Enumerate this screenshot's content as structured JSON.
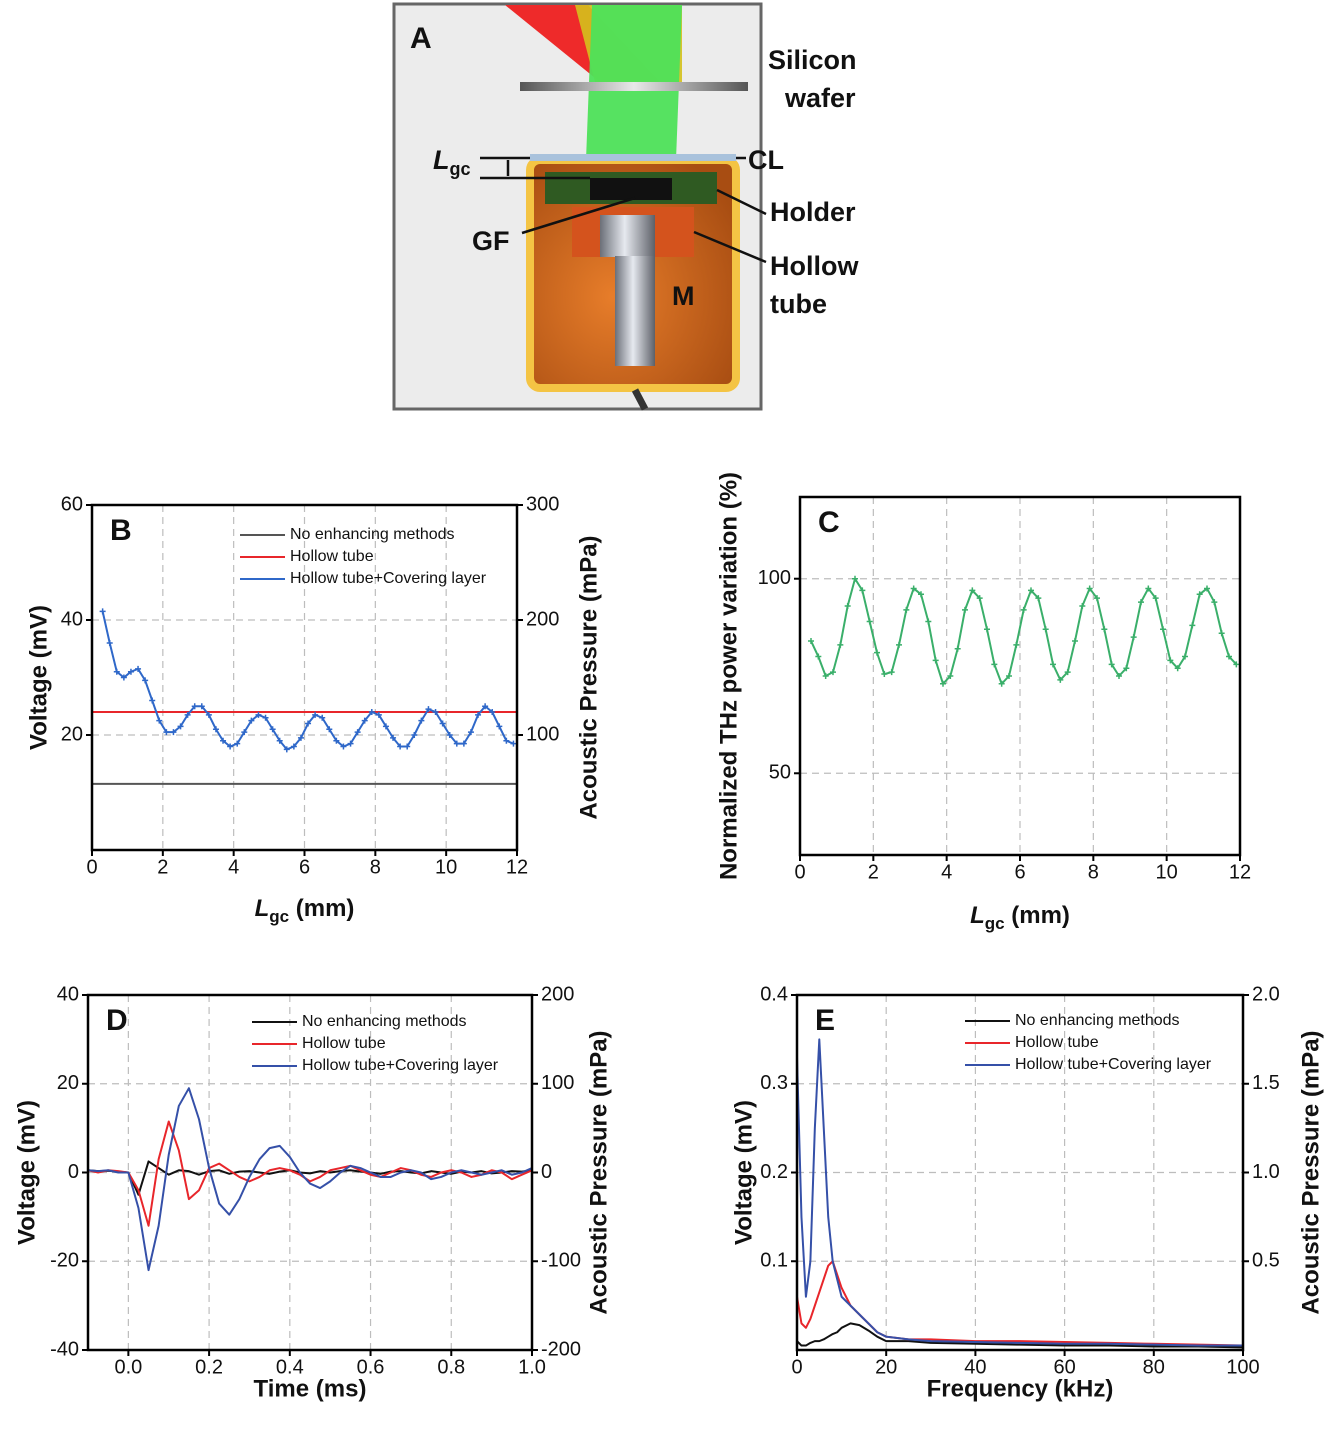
{
  "diagram": {
    "panel_label": "A",
    "labels": {
      "silicon_wafer": [
        "Silicon",
        "wafer"
      ],
      "cl": "CL",
      "holder": "Holder",
      "gf": "GF",
      "hollow_tube": [
        "Hollow",
        "tube"
      ],
      "m": "M",
      "lgc": [
        "L",
        "gc"
      ]
    }
  },
  "chart_data": [
    {
      "type": "line",
      "panel_label": "B",
      "x_label": [
        "L",
        "gc",
        " (mm)"
      ],
      "y_label": "Voltage (mV)",
      "y2_label": "Acoustic Pressure (mPa)",
      "xlim": [
        0,
        12
      ],
      "xticks": [
        0,
        2,
        4,
        6,
        8,
        10,
        12
      ],
      "ylim": [
        0,
        60
      ],
      "yticks": [
        20,
        40,
        60
      ],
      "y2lim": [
        0,
        300
      ],
      "y2ticks": [
        100,
        200,
        300
      ],
      "grid": true,
      "legend": "upper right",
      "series": [
        {
          "name": "No enhancing methods",
          "color": "#555555",
          "x": [
            0,
            12
          ],
          "values": [
            11.5,
            11.5
          ]
        },
        {
          "name": "Hollow tube",
          "color": "#e8262b",
          "x": [
            0,
            12
          ],
          "values": [
            24,
            24
          ]
        },
        {
          "name": "Hollow tube+Covering layer",
          "color": "#2f68c9",
          "marker": true,
          "x": [
            0.3,
            0.5,
            0.7,
            0.9,
            1.1,
            1.3,
            1.5,
            1.7,
            1.9,
            2.1,
            2.3,
            2.5,
            2.7,
            2.9,
            3.1,
            3.3,
            3.5,
            3.7,
            3.9,
            4.1,
            4.3,
            4.5,
            4.7,
            4.9,
            5.1,
            5.3,
            5.5,
            5.7,
            5.9,
            6.1,
            6.3,
            6.5,
            6.7,
            6.9,
            7.1,
            7.3,
            7.5,
            7.7,
            7.9,
            8.1,
            8.3,
            8.5,
            8.7,
            8.9,
            9.1,
            9.3,
            9.5,
            9.7,
            9.9,
            10.1,
            10.3,
            10.5,
            10.7,
            10.9,
            11.1,
            11.3,
            11.5,
            11.7,
            11.9
          ],
          "values": [
            41.5,
            36,
            31,
            30,
            31,
            31.5,
            29.5,
            26,
            22.5,
            20.5,
            20.5,
            21.5,
            23.5,
            25,
            25,
            23.5,
            21,
            19,
            18,
            18.5,
            20.5,
            22.5,
            23.5,
            23,
            21,
            19,
            17.5,
            18,
            19.5,
            22,
            23.5,
            23,
            21,
            19,
            18,
            18.5,
            20.5,
            22.5,
            24,
            23.5,
            21.5,
            19.5,
            18,
            18,
            20,
            22.5,
            24.5,
            24,
            22,
            20,
            18.5,
            18.5,
            20.5,
            23.5,
            25,
            24,
            21.5,
            19,
            18.5
          ]
        }
      ]
    },
    {
      "type": "line",
      "panel_label": "C",
      "x_label": [
        "L",
        "gc",
        " (mm)"
      ],
      "y_label": "Normalized THz power variation (%)",
      "xlim": [
        0,
        12
      ],
      "xticks": [
        0,
        2,
        4,
        6,
        8,
        10,
        12
      ],
      "ylim": [
        29,
        121
      ],
      "yticks": [
        50,
        100
      ],
      "grid": true,
      "x": [
        0.3,
        0.5,
        0.7,
        0.9,
        1.1,
        1.3,
        1.5,
        1.7,
        1.9,
        2.1,
        2.3,
        2.5,
        2.7,
        2.9,
        3.1,
        3.3,
        3.5,
        3.7,
        3.9,
        4.1,
        4.3,
        4.5,
        4.7,
        4.9,
        5.1,
        5.3,
        5.5,
        5.7,
        5.9,
        6.1,
        6.3,
        6.5,
        6.7,
        6.9,
        7.1,
        7.3,
        7.5,
        7.7,
        7.9,
        8.1,
        8.3,
        8.5,
        8.7,
        8.9,
        9.1,
        9.3,
        9.5,
        9.7,
        9.9,
        10.1,
        10.3,
        10.5,
        10.7,
        10.9,
        11.1,
        11.3,
        11.5,
        11.7,
        11.9
      ],
      "series": [
        {
          "color": "#3aaf6a",
          "marker": true,
          "values": [
            84,
            80,
            75,
            76,
            83,
            93,
            100,
            97,
            89,
            81,
            75.5,
            76,
            83,
            92,
            97.5,
            96,
            89,
            79,
            73,
            75,
            82,
            92,
            97,
            95,
            87,
            78,
            73,
            75,
            83,
            92,
            97,
            95,
            87,
            78,
            74,
            76,
            84,
            93,
            97.5,
            95,
            87,
            78,
            75,
            77,
            85,
            94,
            97.5,
            95,
            87,
            79,
            77,
            80,
            88,
            96,
            97.5,
            94,
            86,
            80,
            78
          ]
        }
      ]
    },
    {
      "type": "line",
      "panel_label": "D",
      "x_label": "Time (ms)",
      "y_label": "Voltage (mV)",
      "y2_label": "Acoustic Pressure (mPa)",
      "xlim": [
        -0.1,
        1.0
      ],
      "xticks": [
        {
          "value": 0,
          "label": "0.0"
        },
        0.2,
        0.4,
        0.6,
        0.8,
        {
          "value": 1,
          "label": "1.0"
        }
      ],
      "ylim": [
        -40,
        40
      ],
      "yticks": [
        -40,
        -20,
        0,
        20,
        40
      ],
      "y2lim": [
        -200,
        200
      ],
      "y2ticks": [
        -200,
        -100,
        0,
        100,
        200
      ],
      "grid": true,
      "legend": "upper right",
      "x": [
        -0.1,
        -0.075,
        -0.05,
        -0.025,
        0,
        0.025,
        0.05,
        0.075,
        0.1,
        0.125,
        0.15,
        0.175,
        0.2,
        0.225,
        0.25,
        0.275,
        0.3,
        0.325,
        0.35,
        0.375,
        0.4,
        0.425,
        0.45,
        0.475,
        0.5,
        0.525,
        0.55,
        0.575,
        0.6,
        0.625,
        0.65,
        0.675,
        0.7,
        0.725,
        0.75,
        0.775,
        0.8,
        0.825,
        0.85,
        0.875,
        0.9,
        0.925,
        0.95,
        0.975,
        1.0
      ],
      "series": [
        {
          "name": "No enhancing methods",
          "color": "#111111",
          "values": [
            0.5,
            0.3,
            0.4,
            0.2,
            0,
            -5,
            2.5,
            1,
            -0.5,
            0.5,
            0.3,
            -0.5,
            0.3,
            0.5,
            -0.3,
            0.2,
            0.3,
            0,
            -0.3,
            0.2,
            0.5,
            0,
            -0.2,
            0.3,
            0,
            0.3,
            0.5,
            0.2,
            0,
            -0.3,
            0.2,
            0.3,
            0,
            -0.2,
            0.3,
            0,
            -0.3,
            0.2,
            0,
            0.3,
            -0.2,
            0,
            0.3,
            0.2,
            0.5
          ]
        },
        {
          "name": "Hollow tube",
          "color": "#e8262b",
          "values": [
            0.5,
            0,
            0.5,
            0.3,
            0,
            -4,
            -12,
            3,
            11.5,
            5,
            -6,
            -4,
            1,
            2,
            0.5,
            -1,
            -2,
            -1,
            0.5,
            1,
            0.5,
            -0.5,
            -2,
            -1,
            0.5,
            1,
            1.5,
            0.5,
            -0.5,
            -1,
            0,
            1,
            0.5,
            -0.5,
            -1,
            0,
            0.5,
            0,
            -1,
            -0.5,
            0.5,
            0,
            -1.5,
            -0.5,
            0.5
          ]
        },
        {
          "name": "Hollow tube+Covering layer",
          "color": "#3550a8",
          "values": [
            0.5,
            0.3,
            0.5,
            0,
            0,
            -8,
            -22,
            -12,
            4,
            15,
            19,
            12,
            1,
            -7,
            -9.5,
            -6,
            -1,
            3,
            5.5,
            6,
            3.5,
            0,
            -2.5,
            -3.5,
            -2,
            0,
            1.5,
            1,
            0,
            -1,
            -1,
            0,
            0.5,
            0,
            -1.5,
            -1,
            0,
            0.5,
            0,
            -0.5,
            0,
            0.5,
            -0.5,
            0,
            1
          ]
        }
      ]
    },
    {
      "type": "line",
      "panel_label": "E",
      "x_label": "Frequency (kHz)",
      "y_label": "Voltage (mV)",
      "y2_label": "Acoustic Pressure (mPa)",
      "xlim": [
        0,
        100
      ],
      "xticks": [
        0,
        20,
        40,
        60,
        80,
        100
      ],
      "ylim": [
        0,
        0.4
      ],
      "yticks": [
        0.1,
        0.2,
        0.3,
        0.4
      ],
      "y2lim": [
        0,
        2
      ],
      "y2ticks": [
        0.5,
        {
          "value": 1,
          "label": "1.0"
        },
        1.5,
        {
          "value": 2,
          "label": "2.0"
        }
      ],
      "grid": true,
      "legend": "upper right",
      "x": [
        0,
        1,
        2,
        3,
        4,
        5,
        6,
        7,
        8,
        9,
        10,
        12,
        14,
        16,
        18,
        20,
        25,
        30,
        40,
        50,
        60,
        70,
        80,
        90,
        100
      ],
      "series": [
        {
          "name": "No enhancing methods",
          "color": "#111111",
          "values": [
            0.01,
            0.005,
            0.005,
            0.008,
            0.01,
            0.01,
            0.012,
            0.015,
            0.018,
            0.02,
            0.025,
            0.03,
            0.028,
            0.022,
            0.015,
            0.01,
            0.01,
            0.008,
            0.007,
            0.006,
            0.005,
            0.005,
            0.004,
            0.004,
            0.003
          ]
        },
        {
          "name": "Hollow tube",
          "color": "#e8262b",
          "values": [
            0.06,
            0.03,
            0.025,
            0.035,
            0.05,
            0.065,
            0.08,
            0.095,
            0.1,
            0.085,
            0.07,
            0.05,
            0.04,
            0.03,
            0.02,
            0.015,
            0.012,
            0.012,
            0.01,
            0.01,
            0.009,
            0.008,
            0.007,
            0.006,
            0.005
          ]
        },
        {
          "name": "Hollow tube+Covering layer",
          "color": "#3550a8",
          "values": [
            0.33,
            0.15,
            0.06,
            0.1,
            0.25,
            0.35,
            0.25,
            0.15,
            0.1,
            0.08,
            0.06,
            0.05,
            0.04,
            0.03,
            0.02,
            0.015,
            0.012,
            0.01,
            0.009,
            0.008,
            0.007,
            0.007,
            0.006,
            0.005,
            0.005
          ]
        }
      ]
    }
  ]
}
